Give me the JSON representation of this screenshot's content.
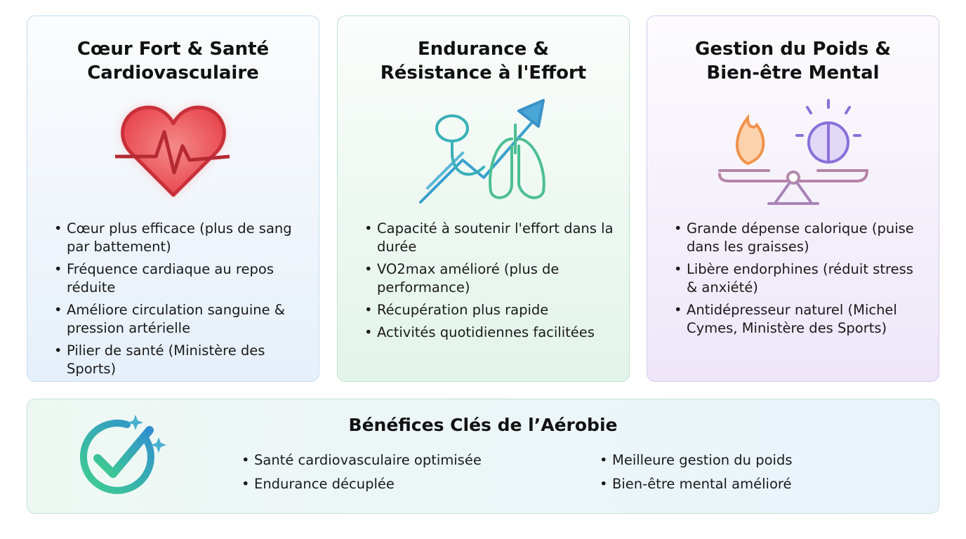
{
  "cards": [
    {
      "title_l1": "Cœur Fort & Santé",
      "title_l2": "Cardiovasculaire",
      "icon": "heart-pulse-icon",
      "accent": "#e0474c",
      "items": [
        "Cœur plus efficace (plus de sang par battement)",
        "Fréquence cardiaque au repos réduite",
        "Améliore circulation sanguine & pression artérielle",
        "Pilier de santé (Ministère des Sports)"
      ]
    },
    {
      "title_l1": "Endurance &",
      "title_l2": "Résistance à l'Effort",
      "icon": "lungs-arrow-icon",
      "accent": "#3a9ec9",
      "items": [
        "Capacité à soutenir l'effort dans la durée",
        "VO2max amélioré (plus de performance)",
        "Récupération plus rapide",
        "Activités quotidiennes facilitées"
      ]
    },
    {
      "title_l1": "Gestion du Poids &",
      "title_l2": "Bien-être Mental",
      "icon": "balance-flame-brain-icon",
      "accent": "#8a6fd6",
      "items": [
        "Grande dépense calorique (puise dans les graisses)",
        "Libère endorphines (réduit stress & anxiété)",
        "Antidépresseur naturel (Michel Cymes, Ministère des Sports)"
      ]
    }
  ],
  "summary": {
    "title": "Bénéfices Clés de l’Aérobie",
    "icon": "check-circle-icon",
    "left": [
      "Santé cardiovasculaire optimisée",
      "Endurance décuplée"
    ],
    "right": [
      "Meilleure gestion du poids",
      "Bien-être mental amélioré"
    ]
  }
}
